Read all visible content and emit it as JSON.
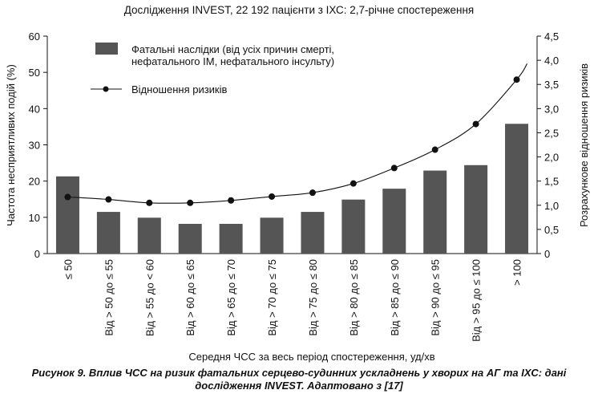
{
  "chart_data": {
    "type": "bar",
    "title": "Дослідження INVEST, 22 192 пацієнти з ІХС: 2,7-річне спостереження",
    "xlabel": "Середня ЧСС за весь період спостереження, уд/хв",
    "ylabel": "Частота несприятливих подій (%)",
    "y2label": "Розрахункове відношення ризиків",
    "categories": [
      "≤ 50",
      "Від > 50 до ≤ 55",
      "Від > 55 до < 60",
      "Від > 60 до ≤ 65",
      "Від > 65 до ≤ 70",
      "Від > 70 до ≤ 75",
      "Від > 75 до ≤ 80",
      "Від > 80 до ≤ 85",
      "Від > 85 до ≤ 90",
      "Від > 90 до ≤ 95",
      "Від > 95 до ≤ 100",
      "> 100"
    ],
    "ylim": [
      0,
      60
    ],
    "yticks": [
      "0",
      "10",
      "20",
      "30",
      "40",
      "50",
      "60"
    ],
    "y2lim": [
      0,
      4.5
    ],
    "y2ticks": [
      "0",
      "0,5",
      "1,0",
      "1,5",
      "2,0",
      "2,5",
      "3,0",
      "3,5",
      "4,0",
      "4,5"
    ],
    "grid": false,
    "legend_position": "top-left",
    "series": [
      {
        "name": "Фатальні наслідки (від усіх причин смерті, нефатального ІМ, нефатального інсульту)",
        "legend_lines": [
          "Фатальні наслідки (від усіх причин смерті,",
          "нефатального ІМ, нефатального інсульту)"
        ],
        "type": "bar",
        "axis": "left",
        "color": "#555555",
        "values": [
          21.3,
          11.5,
          9.9,
          8.2,
          8.2,
          9.9,
          11.5,
          14.9,
          17.9,
          22.9,
          24.4,
          35.8
        ]
      },
      {
        "name": "Відношення ризиків",
        "legend_lines": [
          "Відношення ризиків"
        ],
        "type": "line",
        "axis": "right",
        "color": "#111111",
        "values": [
          1.17,
          1.12,
          1.05,
          1.05,
          1.1,
          1.18,
          1.26,
          1.45,
          1.77,
          2.15,
          2.68,
          3.6
        ]
      }
    ]
  },
  "caption": {
    "line1": "Рисунок 9. Вплив ЧСС на ризик фатальних серцево-судинних ускладнень у хворих на АГ та ІХС: дані",
    "line2": "дослідження INVEST. Адаптовано з [17]"
  }
}
